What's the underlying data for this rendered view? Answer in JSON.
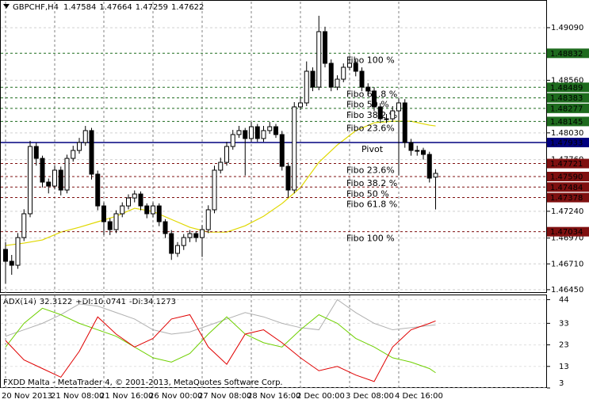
{
  "chart_data": [
    {
      "type": "candlestick",
      "title": "GBPCHF,H4",
      "categories": [
        "20 Nov 2013",
        null,
        null,
        null,
        null,
        null,
        null,
        null,
        "21 Nov 08:00",
        null,
        null,
        null,
        null,
        null,
        null,
        null,
        "21 Nov 16:00",
        null,
        null,
        null,
        null,
        null,
        null,
        null,
        "26 Nov 00:00",
        null,
        null,
        null,
        null,
        null,
        null,
        null,
        "27 Nov 08:00",
        null,
        null,
        null,
        null,
        null,
        null,
        null,
        "28 Nov 16:00",
        null,
        null,
        null,
        null,
        null,
        null,
        null,
        "2 Dec 00:00",
        null,
        null,
        null,
        null,
        null,
        null,
        null,
        "3 Dec 08:00",
        null,
        null,
        null,
        null,
        null,
        null,
        null,
        "4 Dec 16:00",
        null,
        null,
        null,
        null,
        null,
        null
      ],
      "open": [
        1.46856,
        1.46736,
        1.46696,
        1.46975,
        1.47215,
        1.47893,
        1.47773,
        1.47534,
        1.47494,
        1.47654,
        1.47454,
        1.47773,
        1.47853,
        1.47933,
        1.48053,
        1.47614,
        1.47294,
        1.47135,
        1.47055,
        1.47215,
        1.47294,
        1.47374,
        1.47414,
        1.47294,
        1.47215,
        1.47294,
        1.47135,
        1.47015,
        1.46816,
        1.46895,
        1.46975,
        1.47015,
        1.46975,
        1.47055,
        1.47255,
        1.47654,
        1.47733,
        1.47893,
        1.48013,
        1.48053,
        1.47973,
        1.48092,
        1.47973,
        1.48053,
        1.48092,
        1.48013,
        1.47693,
        1.47454,
        1.48292,
        1.48332,
        1.48651,
        1.48491,
        1.4905,
        1.48731,
        1.48491,
        1.48571,
        1.48691,
        1.48731,
        1.48651,
        1.48491,
        1.48452,
        1.48292,
        1.48172,
        1.48172,
        1.48252,
        1.48332,
        1.47933,
        1.47853,
        1.47853,
        1.47813,
        1.47584
      ],
      "high": [
        1.4693,
        1.468,
        1.4702,
        1.4726,
        1.4795,
        1.4793,
        1.478,
        1.4757,
        1.477,
        1.4769,
        1.4781,
        1.479,
        1.4798,
        1.481,
        1.4808,
        1.4765,
        1.4733,
        1.4717,
        1.4725,
        1.4733,
        1.4741,
        1.4745,
        1.4744,
        1.4732,
        1.4733,
        1.4732,
        1.4716,
        1.4705,
        1.4693,
        1.4701,
        1.4705,
        1.4704,
        1.471,
        1.473,
        1.477,
        1.4778,
        1.4794,
        1.4806,
        1.481,
        1.4808,
        1.4814,
        1.4812,
        1.481,
        1.4814,
        1.4812,
        1.4805,
        1.4773,
        1.4834,
        1.484,
        1.4875,
        1.4869,
        1.4921,
        1.491,
        1.4877,
        1.4861,
        1.4873,
        1.488,
        1.4877,
        1.4869,
        1.4853,
        1.4849,
        1.4833,
        1.4822,
        1.483,
        1.4838,
        1.4837,
        1.4797,
        1.479,
        1.4788,
        1.4784,
        1.47664
      ],
      "low": [
        1.46513,
        1.466,
        1.4666,
        1.4694,
        1.4718,
        1.477,
        1.4748,
        1.4742,
        1.4746,
        1.474,
        1.4742,
        1.4774,
        1.4782,
        1.479,
        1.4756,
        1.4725,
        1.47,
        1.47,
        1.4702,
        1.4718,
        1.4726,
        1.4733,
        1.4725,
        1.4717,
        1.4718,
        1.4709,
        1.4697,
        1.4675,
        1.4678,
        1.4685,
        1.4693,
        1.4693,
        1.4678,
        1.4702,
        1.4722,
        1.4762,
        1.477,
        1.4786,
        1.4798,
        1.476,
        1.4794,
        1.4794,
        1.4794,
        1.4802,
        1.4798,
        1.4765,
        1.4738,
        1.4742,
        1.4826,
        1.483,
        1.4845,
        1.4846,
        1.4869,
        1.4845,
        1.4846,
        1.4854,
        1.4866,
        1.486,
        1.4845,
        1.484,
        1.4825,
        1.4813,
        1.4813,
        1.4814,
        1.476,
        1.4788,
        1.478,
        1.478,
        1.4776,
        1.4753,
        1.47259
      ],
      "close": [
        1.46736,
        1.46696,
        1.46975,
        1.47215,
        1.47893,
        1.47773,
        1.47534,
        1.47494,
        1.47654,
        1.47454,
        1.47773,
        1.47853,
        1.47933,
        1.48053,
        1.47614,
        1.47294,
        1.47135,
        1.47055,
        1.47215,
        1.47294,
        1.47374,
        1.47414,
        1.47294,
        1.47215,
        1.47294,
        1.47135,
        1.47015,
        1.46816,
        1.46895,
        1.46975,
        1.47015,
        1.46975,
        1.47055,
        1.47255,
        1.47654,
        1.47733,
        1.47893,
        1.48013,
        1.48053,
        1.47973,
        1.48092,
        1.47973,
        1.48053,
        1.48092,
        1.48013,
        1.47693,
        1.47454,
        1.48292,
        1.48332,
        1.48651,
        1.48491,
        1.4905,
        1.48731,
        1.48491,
        1.48571,
        1.48691,
        1.48731,
        1.48651,
        1.48491,
        1.48452,
        1.48292,
        1.48172,
        1.48172,
        1.48252,
        1.48332,
        1.47933,
        1.47853,
        1.47853,
        1.47813,
        1.47574,
        1.47622
      ],
      "up_color": "#ffffff",
      "down_color": "#000000",
      "lines": [
        {
          "color": "#e0d800",
          "x": [
            0,
            3,
            6,
            9,
            12,
            15,
            18,
            21,
            24,
            27,
            30,
            33,
            36,
            39,
            42,
            45,
            48,
            51,
            54,
            57,
            60,
            63,
            66,
            69,
            70
          ],
          "values": [
            1.46895,
            1.46919,
            1.46951,
            1.4703,
            1.47079,
            1.47134,
            1.4719,
            1.4727,
            1.47238,
            1.47158,
            1.47079,
            1.4703,
            1.4703,
            1.47094,
            1.4719,
            1.47318,
            1.47478,
            1.47733,
            1.47908,
            1.48052,
            1.48132,
            1.48147,
            1.48147,
            1.48108,
            1.481
          ]
        }
      ],
      "levels": [
        {
          "name": "Fibo 100 %",
          "value": 1.48832,
          "color": "#1e6b1e",
          "style": "dash"
        },
        {
          "name": "Fibo 61.8 %",
          "value": 1.48489,
          "color": "#1e6b1e",
          "style": "dash"
        },
        {
          "name": "Fibo 50 %",
          "value": 1.48383,
          "color": "#1e6b1e",
          "style": "dash"
        },
        {
          "name": "Fibo 38.2 %",
          "value": 1.48277,
          "color": "#1e6b1e",
          "style": "dash"
        },
        {
          "name": "Fibo 23.6%",
          "value": 1.48145,
          "color": "#1e6b1e",
          "style": "dash"
        },
        {
          "name": "Pivot",
          "value": 1.47933,
          "color": "#00007f",
          "style": "solid"
        },
        {
          "name": "Fibo 23.6%",
          "value": 1.47721,
          "color": "#7f1010",
          "style": "dash"
        },
        {
          "name": "Fibo 38.2 %",
          "value": {
            "value": 1.4759,
            "label": "1.47590"
          },
          "color": "#7f1010",
          "style": "dash"
        },
        {
          "name": "Fibo 50 %",
          "value": 1.47484,
          "color": "#7f1010",
          "style": "dash"
        },
        {
          "name": "Fibo 61.8 %",
          "value": 1.47378,
          "color": "#7f1010",
          "style": "dash"
        },
        {
          "name": "Fibo 100 %",
          "value": 1.47034,
          "color": "#7f1010",
          "style": "dash"
        }
      ],
      "ylim": [
        1.46417,
        1.49353
      ],
      "yticks": [
        {
          "value": 1.4909,
          "label": "1.49090"
        },
        {
          "value": 1.4856,
          "label": "1.48560"
        },
        {
          "value": 1.4803,
          "label": "1.48030"
        },
        {
          "value": 1.4776,
          "label": "1.47760"
        },
        {
          "value": 1.4724,
          "label": "1.47240"
        },
        {
          "value": 1.4697,
          "label": "1.46970"
        },
        {
          "value": 1.4671,
          "label": "1.46710"
        },
        {
          "value": 1.4645,
          "label": "1.46450"
        }
      ],
      "grid": true
    },
    {
      "type": "line",
      "x": [
        0,
        3,
        6,
        9,
        12,
        15,
        18,
        21,
        24,
        27,
        30,
        33,
        36,
        39,
        42,
        45,
        48,
        51,
        54,
        57,
        60,
        63,
        66,
        69,
        70
      ],
      "series": [
        {
          "name": "ADX(14)",
          "color": "#b0b0b0",
          "values": [
            27,
            30,
            33,
            37,
            42,
            41,
            38,
            35,
            30,
            28,
            29,
            32,
            35,
            38,
            36,
            33,
            31,
            30,
            44,
            38,
            33,
            30,
            31,
            32,
            32.3122
          ]
        },
        {
          "name": "+DI:",
          "color": "#6fd000",
          "values": [
            22,
            33,
            40,
            37,
            33,
            30,
            27,
            22,
            17,
            15,
            19,
            28,
            36,
            28,
            24,
            22,
            30,
            37,
            33,
            26,
            22,
            17,
            15,
            12,
            10.0741
          ]
        },
        {
          "name": "-DI:",
          "color": "#e00000",
          "values": [
            25,
            16,
            12,
            8,
            20,
            36,
            28,
            22,
            26,
            35,
            37,
            22,
            14,
            28,
            30,
            24,
            17,
            11,
            13,
            9,
            6,
            22,
            30,
            33,
            34.1273
          ]
        }
      ],
      "ylim": [
        3,
        46
      ],
      "yticks": [
        44,
        33,
        23,
        13,
        3
      ],
      "grid": true
    }
  ],
  "footer": "FXDD Malta - MetaTrader 4, © 2001-2013, MetaQuotes Software Corp."
}
